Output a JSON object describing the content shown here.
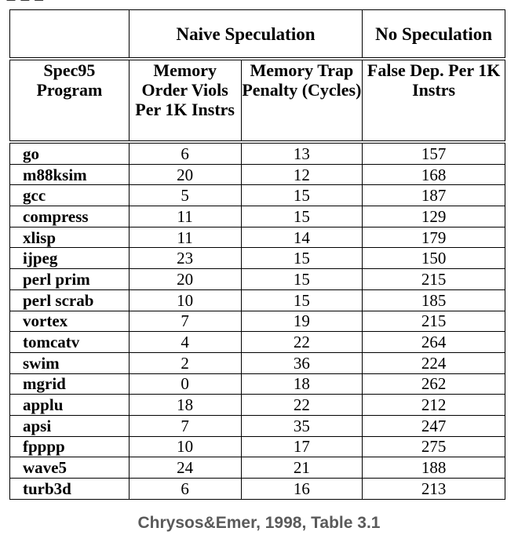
{
  "table": {
    "group_headers": [
      "Naive Speculation",
      "No Speculation"
    ],
    "column_headers": [
      "Spec95 Program",
      "Memory Order Viols Per 1K Instrs",
      "Memory Trap Penalty (Cycles)",
      "False Dep. Per 1K Instrs"
    ],
    "rows": [
      {
        "program": "go",
        "viols": "6",
        "penalty": "13",
        "false_dep": "157"
      },
      {
        "program": "m88ksim",
        "viols": "20",
        "penalty": "12",
        "false_dep": "168"
      },
      {
        "program": "gcc",
        "viols": "5",
        "penalty": "15",
        "false_dep": "187"
      },
      {
        "program": "compress",
        "viols": "11",
        "penalty": "15",
        "false_dep": "129"
      },
      {
        "program": "xlisp",
        "viols": "11",
        "penalty": "14",
        "false_dep": "179"
      },
      {
        "program": "ijpeg",
        "viols": "23",
        "penalty": "15",
        "false_dep": "150"
      },
      {
        "program": "perl prim",
        "viols": "20",
        "penalty": "15",
        "false_dep": "215"
      },
      {
        "program": "perl scrab",
        "viols": "10",
        "penalty": "15",
        "false_dep": "185"
      },
      {
        "program": "vortex",
        "viols": "7",
        "penalty": "19",
        "false_dep": "215"
      },
      {
        "program": "tomcatv",
        "viols": "4",
        "penalty": "22",
        "false_dep": "264"
      },
      {
        "program": "swim",
        "viols": "2",
        "penalty": "36",
        "false_dep": "224"
      },
      {
        "program": "mgrid",
        "viols": "0",
        "penalty": "18",
        "false_dep": "262"
      },
      {
        "program": "applu",
        "viols": "18",
        "penalty": "22",
        "false_dep": "212"
      },
      {
        "program": "apsi",
        "viols": "7",
        "penalty": "35",
        "false_dep": "247"
      },
      {
        "program": "fpppp",
        "viols": "10",
        "penalty": "17",
        "false_dep": "275"
      },
      {
        "program": "wave5",
        "viols": "24",
        "penalty": "21",
        "false_dep": "188"
      },
      {
        "program": "turb3d",
        "viols": "6",
        "penalty": "16",
        "false_dep": "213"
      }
    ]
  },
  "caption": "Chrysos&Emer, 1998, Table 3.1"
}
